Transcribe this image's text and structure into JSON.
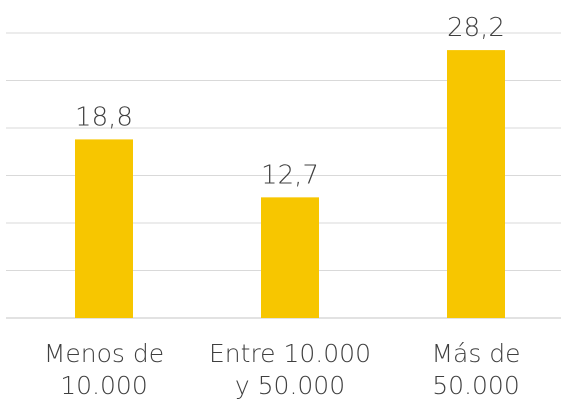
{
  "chart_data": {
    "type": "bar",
    "categories": [
      [
        "Menos de",
        "10.000"
      ],
      [
        "Entre 10.000",
        "y 50.000"
      ],
      [
        "Más de",
        "50.000"
      ]
    ],
    "values": [
      18.8,
      12.7,
      28.2
    ],
    "value_labels": [
      "18,8",
      "12,7",
      "28,2"
    ],
    "ylim": [
      0,
      30
    ],
    "grid": true,
    "bar_color": "#f7c600",
    "grid_color": "#d9d9d9",
    "text_color": "#3f3f3f"
  }
}
